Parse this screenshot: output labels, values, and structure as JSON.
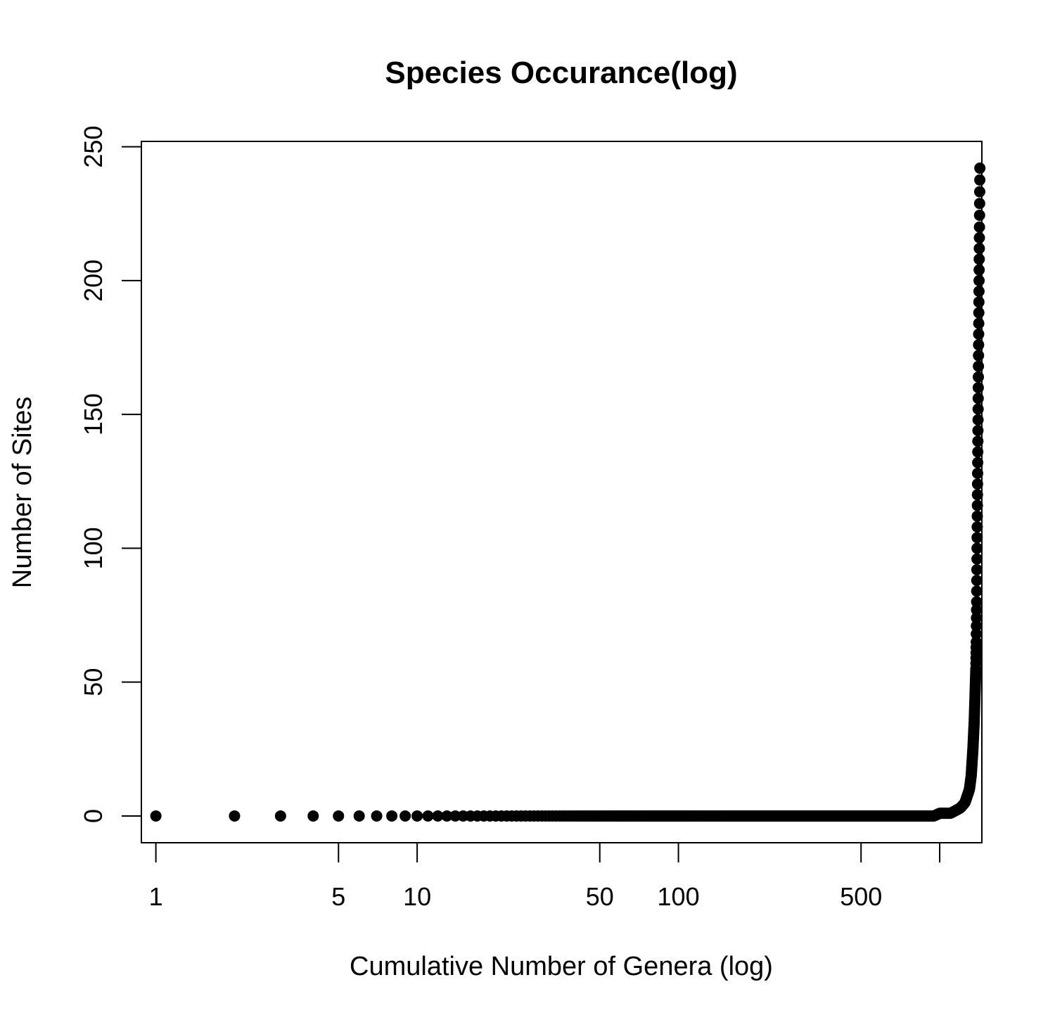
{
  "chart_data": {
    "type": "scatter",
    "title": "Species Occurance(log)",
    "xlabel": "Cumulative Number of Genera (log)",
    "ylabel": "Number of Sites",
    "x_scale": "log",
    "xlim": [
      0.88,
      1450
    ],
    "ylim": [
      -10,
      252
    ],
    "x_ticks": [
      {
        "value": 1,
        "label": "1"
      },
      {
        "value": 5,
        "label": "5"
      },
      {
        "value": 10,
        "label": "10"
      },
      {
        "value": 50,
        "label": "50"
      },
      {
        "value": 100,
        "label": "100"
      },
      {
        "value": 500,
        "label": "500"
      },
      {
        "value": 1000,
        "label": ""
      }
    ],
    "y_ticks": [
      {
        "value": 0,
        "label": "0"
      },
      {
        "value": 50,
        "label": "50"
      },
      {
        "value": 100,
        "label": "100"
      },
      {
        "value": 150,
        "label": "150"
      },
      {
        "value": 200,
        "label": "200"
      },
      {
        "value": 250,
        "label": "250"
      }
    ],
    "grid": false,
    "legend": "none",
    "marker_color": "#000000",
    "points": [
      [
        1,
        0
      ],
      [
        2,
        0
      ],
      [
        3,
        0
      ],
      [
        4,
        0
      ],
      [
        5,
        0
      ],
      [
        6,
        0
      ],
      [
        7,
        0
      ],
      [
        8,
        0
      ],
      [
        9,
        0
      ],
      [
        10,
        0
      ],
      [
        20,
        0
      ],
      [
        50,
        0
      ],
      [
        100,
        0
      ],
      [
        200,
        0
      ],
      [
        500,
        0
      ],
      [
        950,
        0
      ],
      [
        1000,
        1
      ],
      [
        1050,
        1
      ],
      [
        1100,
        1
      ],
      [
        1150,
        2
      ],
      [
        1200,
        3
      ],
      [
        1250,
        5
      ],
      [
        1300,
        10
      ],
      [
        1320,
        15
      ],
      [
        1340,
        25
      ],
      [
        1355,
        35
      ],
      [
        1365,
        45
      ],
      [
        1375,
        55
      ],
      [
        1380,
        65
      ],
      [
        1385,
        80
      ],
      [
        1390,
        100
      ],
      [
        1395,
        120
      ],
      [
        1400,
        140
      ],
      [
        1405,
        160
      ],
      [
        1410,
        180
      ],
      [
        1415,
        200
      ],
      [
        1420,
        220
      ],
      [
        1425,
        242
      ]
    ]
  }
}
